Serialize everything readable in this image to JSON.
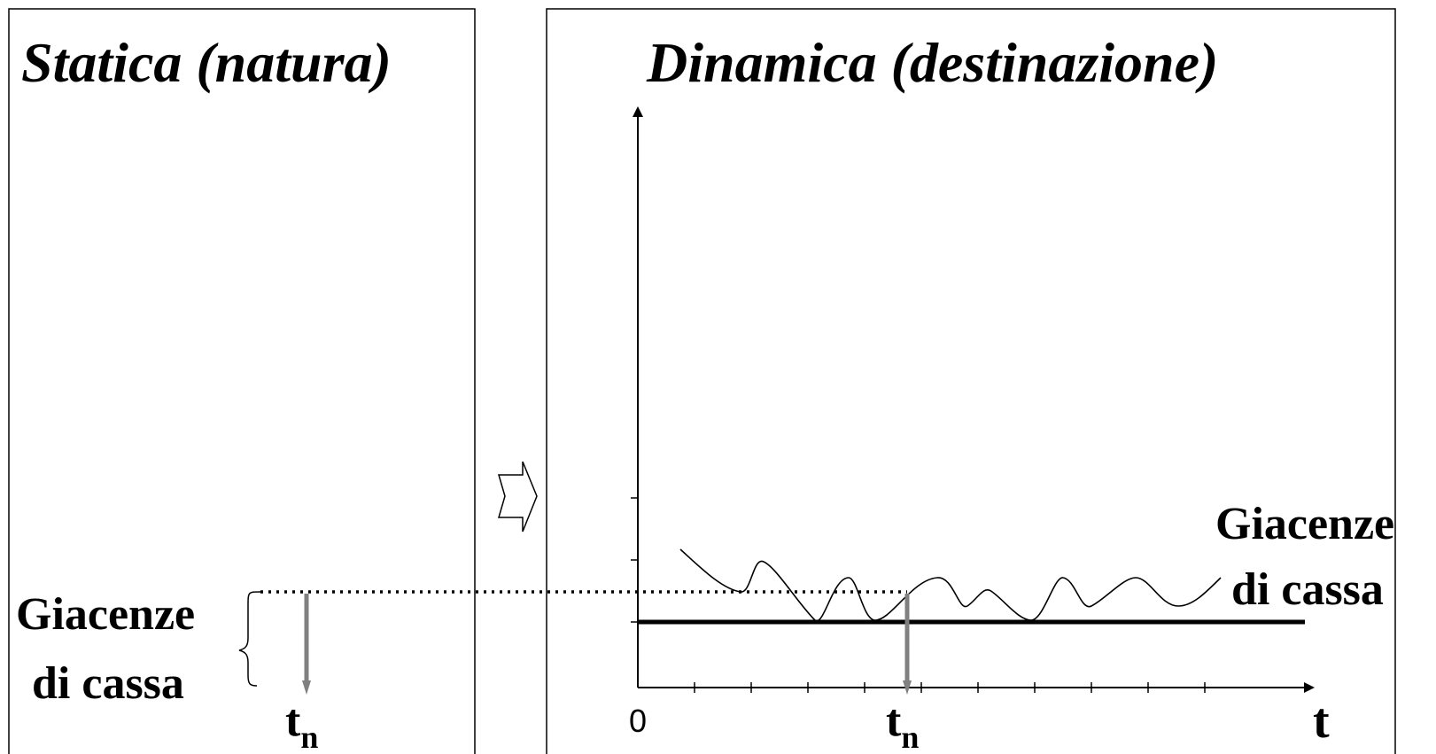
{
  "left_panel": {
    "title": "Statica (natura)",
    "brace_label_line1": "Giacenze",
    "brace_label_line2": "di cassa",
    "marker_label": "t",
    "marker_subscript": "n"
  },
  "right_panel": {
    "title": "Dinamica (destinazione)",
    "origin_label": "0",
    "x_axis_label": "t",
    "marker_label": "t",
    "marker_subscript": "n",
    "curve_label_line1": "Giacenze",
    "curve_label_line2": "di cassa"
  },
  "transition_arrow": "right-arrow-icon"
}
